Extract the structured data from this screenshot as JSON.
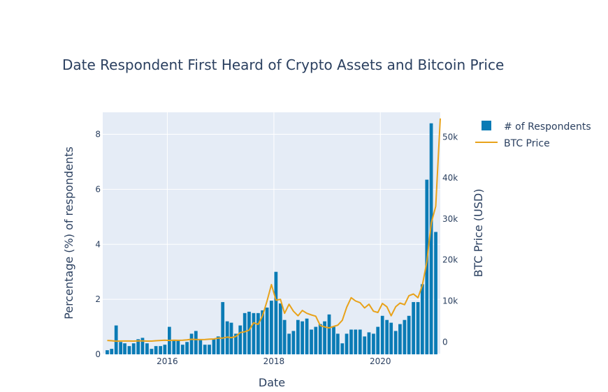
{
  "chart_data": {
    "type": "bar+line",
    "title": "Date Respondent First Heard of Crypto Assets and Bitcoin Price",
    "xlabel": "Date",
    "ylabel_left": "Percentage (%) of respondents",
    "ylabel_right": "BTC Price (USD)",
    "x_tick_labels": [
      "2016",
      "2018",
      "2020"
    ],
    "y_left_tick_labels": [
      "0",
      "2",
      "4",
      "6",
      "8"
    ],
    "y_right_tick_labels": [
      "0",
      "10k",
      "20k",
      "30k",
      "40k",
      "50k"
    ],
    "xlim": [
      "2014-10-15",
      "2021-02-15"
    ],
    "ylim_left": [
      0,
      8.8
    ],
    "ylim_right": [
      -3000,
      56000
    ],
    "grid": true,
    "legend_position": "top-right",
    "colors": {
      "bar": "#0a7bb5",
      "line": "#e8a21a",
      "plot_bg": "#e5ecf6",
      "text": "#2a3f5f"
    },
    "series": [
      {
        "name": "# of Respondents",
        "kind": "bar",
        "axis": "left",
        "x": [
          "2014-11",
          "2014-12",
          "2015-01",
          "2015-02",
          "2015-03",
          "2015-04",
          "2015-05",
          "2015-06",
          "2015-07",
          "2015-08",
          "2015-09",
          "2015-10",
          "2015-11",
          "2015-12",
          "2016-01",
          "2016-02",
          "2016-03",
          "2016-04",
          "2016-05",
          "2016-06",
          "2016-07",
          "2016-08",
          "2016-09",
          "2016-10",
          "2016-11",
          "2016-12",
          "2017-01",
          "2017-02",
          "2017-03",
          "2017-04",
          "2017-05",
          "2017-06",
          "2017-07",
          "2017-08",
          "2017-09",
          "2017-10",
          "2017-11",
          "2017-12",
          "2018-01",
          "2018-02",
          "2018-03",
          "2018-04",
          "2018-05",
          "2018-06",
          "2018-07",
          "2018-08",
          "2018-09",
          "2018-10",
          "2018-11",
          "2018-12",
          "2019-01",
          "2019-02",
          "2019-03",
          "2019-04",
          "2019-05",
          "2019-06",
          "2019-07",
          "2019-08",
          "2019-09",
          "2019-10",
          "2019-11",
          "2019-12",
          "2020-01",
          "2020-02",
          "2020-03",
          "2020-04",
          "2020-05",
          "2020-06",
          "2020-07",
          "2020-08",
          "2020-09",
          "2020-10",
          "2020-11",
          "2020-12",
          "2021-01"
        ],
        "values": [
          0.15,
          0.2,
          1.05,
          0.45,
          0.4,
          0.3,
          0.4,
          0.55,
          0.6,
          0.4,
          0.2,
          0.3,
          0.3,
          0.35,
          1.0,
          0.5,
          0.5,
          0.35,
          0.45,
          0.75,
          0.85,
          0.55,
          0.35,
          0.35,
          0.55,
          0.65,
          1.9,
          1.2,
          1.15,
          0.75,
          1.05,
          1.5,
          1.55,
          1.5,
          1.5,
          1.6,
          1.7,
          1.95,
          3.0,
          1.85,
          1.25,
          0.75,
          0.85,
          1.25,
          1.2,
          1.3,
          0.9,
          1.0,
          1.1,
          1.2,
          1.45,
          1.0,
          0.75,
          0.4,
          0.75,
          0.9,
          0.9,
          0.9,
          0.65,
          0.8,
          0.75,
          1.0,
          1.4,
          1.25,
          1.15,
          0.85,
          1.1,
          1.25,
          1.4,
          1.9,
          1.9,
          2.55,
          6.35,
          8.4,
          4.45
        ]
      },
      {
        "name": "BTC Price",
        "kind": "line",
        "axis": "right",
        "x": [
          "2014-11",
          "2014-12",
          "2015-01",
          "2015-02",
          "2015-03",
          "2015-04",
          "2015-05",
          "2015-06",
          "2015-07",
          "2015-08",
          "2015-09",
          "2015-10",
          "2015-11",
          "2015-12",
          "2016-01",
          "2016-02",
          "2016-03",
          "2016-04",
          "2016-05",
          "2016-06",
          "2016-07",
          "2016-08",
          "2016-09",
          "2016-10",
          "2016-11",
          "2016-12",
          "2017-01",
          "2017-02",
          "2017-03",
          "2017-04",
          "2017-05",
          "2017-06",
          "2017-07",
          "2017-08",
          "2017-09",
          "2017-10",
          "2017-11",
          "2017-12",
          "2018-01",
          "2018-02",
          "2018-03",
          "2018-04",
          "2018-05",
          "2018-06",
          "2018-07",
          "2018-08",
          "2018-09",
          "2018-10",
          "2018-11",
          "2018-12",
          "2019-01",
          "2019-02",
          "2019-03",
          "2019-04",
          "2019-05",
          "2019-06",
          "2019-07",
          "2019-08",
          "2019-09",
          "2019-10",
          "2019-11",
          "2019-12",
          "2020-01",
          "2020-02",
          "2020-03",
          "2020-04",
          "2020-05",
          "2020-06",
          "2020-07",
          "2020-08",
          "2020-09",
          "2020-10",
          "2020-11",
          "2020-12",
          "2021-01",
          "2021-02"
        ],
        "values": [
          380,
          320,
          220,
          250,
          250,
          240,
          230,
          260,
          280,
          230,
          235,
          310,
          380,
          430,
          380,
          440,
          420,
          450,
          530,
          670,
          620,
          580,
          610,
          700,
          740,
          960,
          970,
          1200,
          1070,
          1350,
          2300,
          2500,
          2900,
          4700,
          4300,
          6400,
          10000,
          14000,
          10200,
          10400,
          7000,
          9200,
          7500,
          6400,
          7700,
          7000,
          6600,
          6300,
          4000,
          3700,
          3450,
          3800,
          4100,
          5300,
          8500,
          10800,
          10000,
          9600,
          8300,
          9200,
          7500,
          7200,
          9400,
          8600,
          6400,
          8600,
          9500,
          9100,
          11300,
          11700,
          10800,
          13800,
          19600,
          29000,
          33100,
          54500
        ]
      }
    ]
  }
}
